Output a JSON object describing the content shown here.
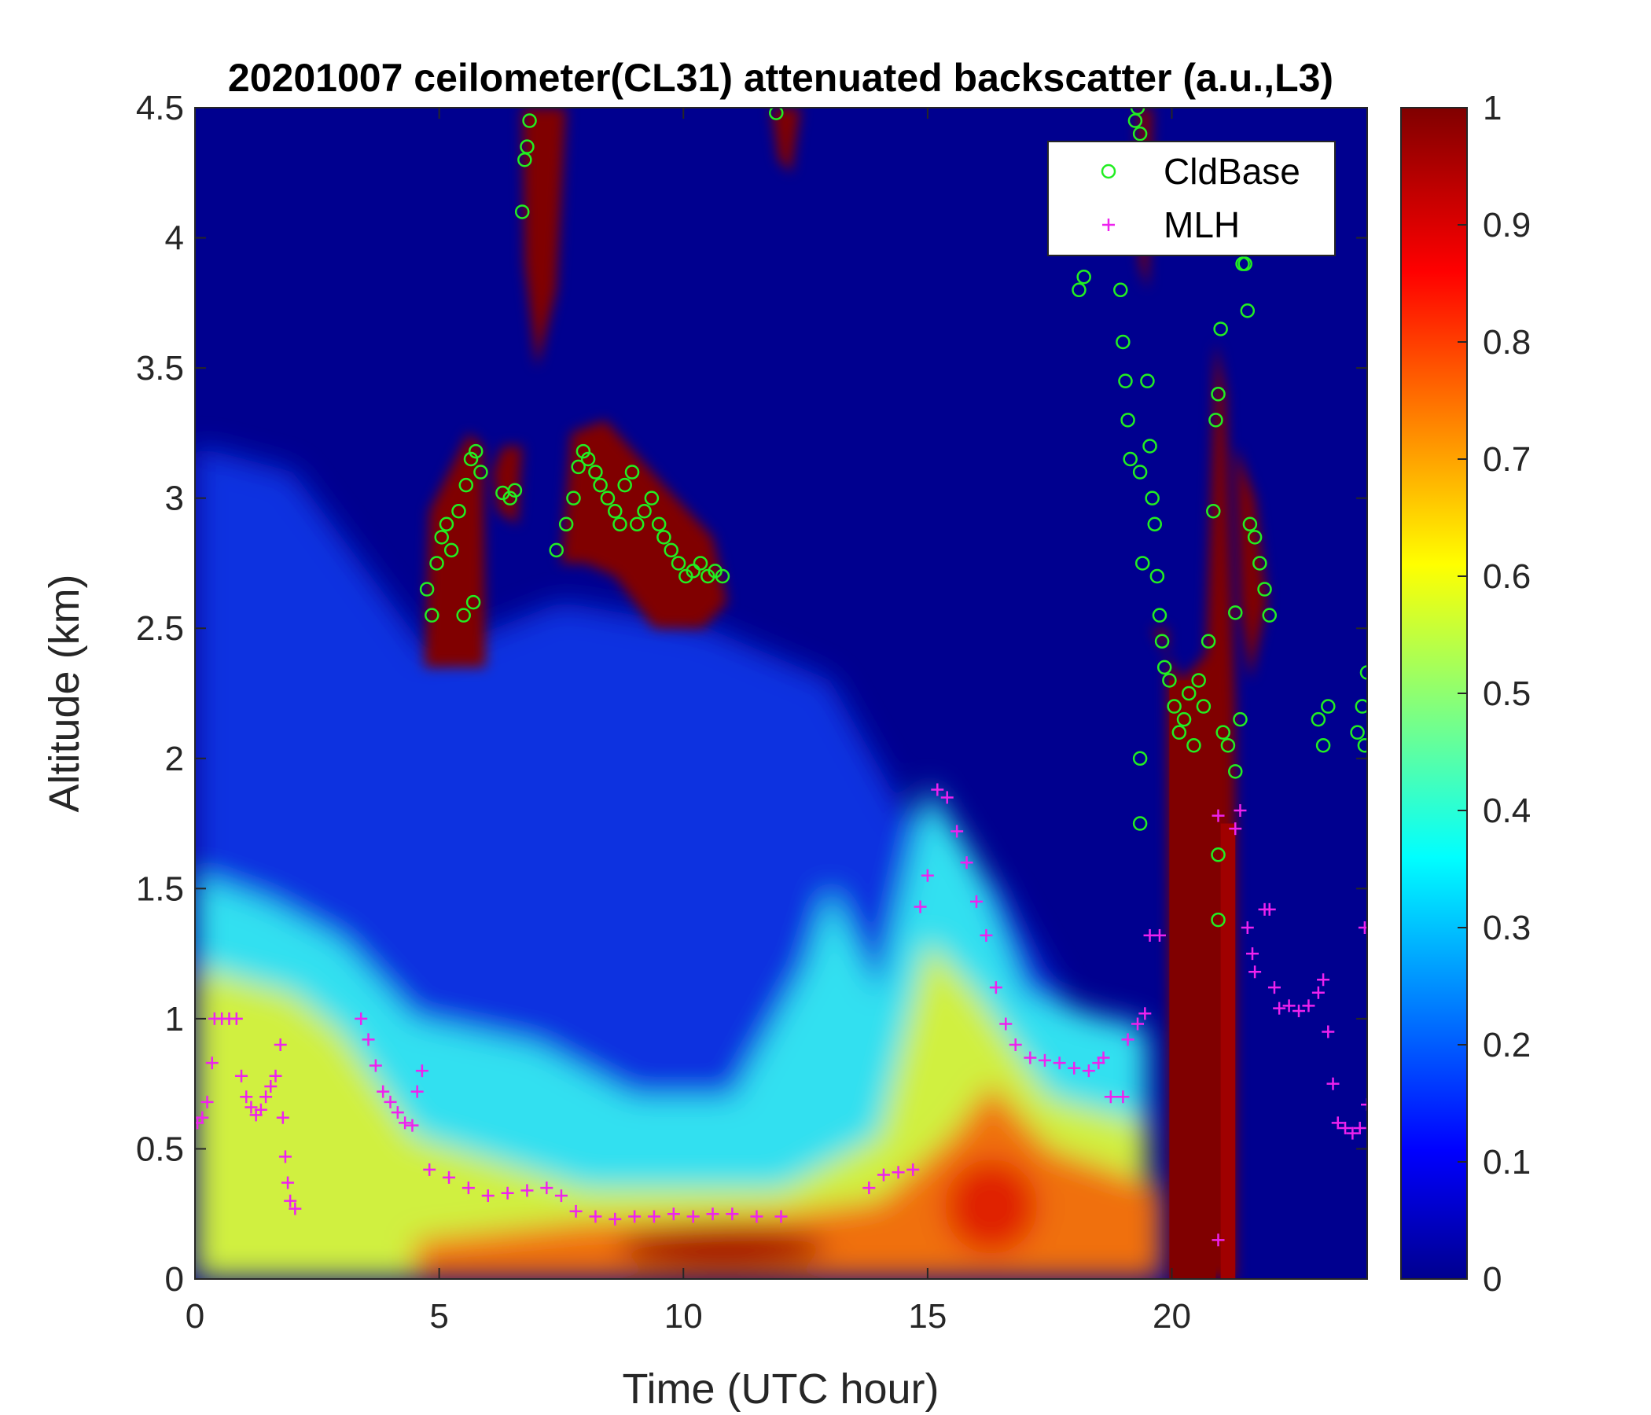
{
  "chart_data": {
    "type": "heatmap",
    "title": "20201007 ceilometer(CL31) attenuated backscatter (a.u.,L3)",
    "xlabel": "Time (UTC hour)",
    "ylabel": "Altitude (km)",
    "xlim": [
      0,
      24
    ],
    "ylim": [
      0,
      4.5
    ],
    "xticks": [
      0,
      5,
      10,
      15,
      20
    ],
    "yticks": [
      0,
      0.5,
      1,
      1.5,
      2,
      2.5,
      3,
      3.5,
      4,
      4.5
    ],
    "colorbar": {
      "colormap": "jet",
      "range": [
        0,
        1
      ],
      "ticks": [
        0,
        0.1,
        0.2,
        0.3,
        0.4,
        0.5,
        0.6,
        0.7,
        0.8,
        0.9,
        1
      ]
    },
    "legend_position": "top-right",
    "grid": false,
    "series": [
      {
        "name": "CldBase",
        "marker": "circle",
        "color": "#22ee22",
        "points": [
          [
            4.75,
            2.65
          ],
          [
            4.85,
            2.55
          ],
          [
            4.95,
            2.75
          ],
          [
            5.05,
            2.85
          ],
          [
            5.15,
            2.9
          ],
          [
            5.25,
            2.8
          ],
          [
            5.4,
            2.95
          ],
          [
            5.55,
            3.05
          ],
          [
            5.65,
            3.15
          ],
          [
            5.75,
            3.18
          ],
          [
            5.85,
            3.1
          ],
          [
            5.5,
            2.55
          ],
          [
            5.7,
            2.6
          ],
          [
            6.3,
            3.02
          ],
          [
            6.45,
            3.0
          ],
          [
            6.55,
            3.03
          ],
          [
            6.7,
            4.1
          ],
          [
            6.75,
            4.3
          ],
          [
            6.8,
            4.35
          ],
          [
            6.85,
            4.45
          ],
          [
            7.4,
            2.8
          ],
          [
            7.6,
            2.9
          ],
          [
            7.75,
            3.0
          ],
          [
            7.85,
            3.12
          ],
          [
            7.95,
            3.18
          ],
          [
            8.05,
            3.15
          ],
          [
            8.2,
            3.1
          ],
          [
            8.3,
            3.05
          ],
          [
            8.45,
            3.0
          ],
          [
            8.6,
            2.95
          ],
          [
            8.7,
            2.9
          ],
          [
            8.8,
            3.05
          ],
          [
            8.95,
            3.1
          ],
          [
            9.05,
            2.9
          ],
          [
            9.2,
            2.95
          ],
          [
            9.35,
            3.0
          ],
          [
            9.5,
            2.9
          ],
          [
            9.6,
            2.85
          ],
          [
            9.75,
            2.8
          ],
          [
            9.9,
            2.75
          ],
          [
            10.05,
            2.7
          ],
          [
            10.2,
            2.72
          ],
          [
            10.35,
            2.75
          ],
          [
            10.5,
            2.7
          ],
          [
            10.65,
            2.72
          ],
          [
            10.8,
            2.7
          ],
          [
            11.9,
            4.48
          ],
          [
            18.1,
            3.8
          ],
          [
            18.2,
            3.85
          ],
          [
            18.95,
            3.8
          ],
          [
            19.0,
            3.6
          ],
          [
            19.05,
            3.45
          ],
          [
            19.1,
            3.3
          ],
          [
            19.15,
            3.15
          ],
          [
            19.25,
            4.45
          ],
          [
            19.3,
            4.5
          ],
          [
            19.35,
            4.4
          ],
          [
            19.35,
            3.1
          ],
          [
            19.4,
            2.75
          ],
          [
            19.5,
            3.45
          ],
          [
            19.55,
            3.2
          ],
          [
            19.6,
            3.0
          ],
          [
            19.65,
            2.9
          ],
          [
            19.7,
            2.7
          ],
          [
            19.75,
            2.55
          ],
          [
            19.8,
            2.45
          ],
          [
            19.85,
            2.35
          ],
          [
            19.95,
            2.3
          ],
          [
            20.05,
            2.2
          ],
          [
            20.15,
            2.1
          ],
          [
            20.25,
            2.15
          ],
          [
            20.35,
            2.25
          ],
          [
            20.45,
            2.05
          ],
          [
            20.55,
            2.3
          ],
          [
            20.65,
            2.2
          ],
          [
            20.75,
            2.45
          ],
          [
            20.85,
            2.95
          ],
          [
            20.9,
            3.3
          ],
          [
            20.95,
            3.4
          ],
          [
            21.0,
            3.65
          ],
          [
            21.05,
            2.1
          ],
          [
            21.15,
            2.05
          ],
          [
            21.3,
            1.95
          ],
          [
            21.4,
            2.15
          ],
          [
            21.45,
            3.9
          ],
          [
            21.5,
            3.9
          ],
          [
            21.55,
            3.72
          ],
          [
            21.6,
            2.9
          ],
          [
            21.7,
            2.85
          ],
          [
            21.8,
            2.75
          ],
          [
            21.9,
            2.65
          ],
          [
            22.0,
            2.55
          ],
          [
            19.35,
            2.0
          ],
          [
            19.35,
            1.75
          ],
          [
            20.95,
            1.63
          ],
          [
            20.95,
            1.38
          ],
          [
            21.3,
            2.56
          ],
          [
            23.0,
            2.15
          ],
          [
            23.1,
            2.05
          ],
          [
            23.2,
            2.2
          ],
          [
            23.8,
            2.1
          ],
          [
            23.9,
            2.2
          ],
          [
            23.95,
            2.05
          ],
          [
            24.0,
            2.33
          ]
        ]
      },
      {
        "name": "MLH",
        "marker": "plus",
        "color": "#ee22ee",
        "points": [
          [
            0.05,
            0.6
          ],
          [
            0.15,
            0.62
          ],
          [
            0.25,
            0.68
          ],
          [
            0.35,
            0.83
          ],
          [
            0.4,
            1.0
          ],
          [
            0.55,
            1.0
          ],
          [
            0.7,
            1.0
          ],
          [
            0.85,
            1.0
          ],
          [
            0.95,
            0.78
          ],
          [
            1.05,
            0.7
          ],
          [
            1.15,
            0.66
          ],
          [
            1.25,
            0.63
          ],
          [
            1.35,
            0.65
          ],
          [
            1.45,
            0.7
          ],
          [
            1.55,
            0.74
          ],
          [
            1.65,
            0.78
          ],
          [
            1.75,
            0.9
          ],
          [
            1.8,
            0.62
          ],
          [
            1.85,
            0.47
          ],
          [
            1.9,
            0.37
          ],
          [
            1.95,
            0.3
          ],
          [
            2.05,
            0.27
          ],
          [
            3.4,
            1.0
          ],
          [
            3.55,
            0.92
          ],
          [
            3.7,
            0.82
          ],
          [
            3.85,
            0.72
          ],
          [
            4.0,
            0.68
          ],
          [
            4.15,
            0.64
          ],
          [
            4.3,
            0.6
          ],
          [
            4.45,
            0.59
          ],
          [
            4.55,
            0.72
          ],
          [
            4.65,
            0.8
          ],
          [
            4.8,
            0.42
          ],
          [
            5.2,
            0.39
          ],
          [
            5.6,
            0.35
          ],
          [
            6.0,
            0.32
          ],
          [
            6.4,
            0.33
          ],
          [
            6.8,
            0.34
          ],
          [
            7.2,
            0.35
          ],
          [
            7.5,
            0.32
          ],
          [
            7.8,
            0.26
          ],
          [
            8.2,
            0.24
          ],
          [
            8.6,
            0.23
          ],
          [
            9.0,
            0.24
          ],
          [
            9.4,
            0.24
          ],
          [
            9.8,
            0.25
          ],
          [
            10.2,
            0.24
          ],
          [
            10.6,
            0.25
          ],
          [
            11.0,
            0.25
          ],
          [
            11.5,
            0.24
          ],
          [
            12.0,
            0.24
          ],
          [
            13.8,
            0.35
          ],
          [
            14.1,
            0.4
          ],
          [
            14.4,
            0.41
          ],
          [
            14.7,
            0.42
          ],
          [
            14.85,
            1.43
          ],
          [
            15.0,
            1.55
          ],
          [
            15.2,
            1.88
          ],
          [
            15.4,
            1.85
          ],
          [
            15.6,
            1.72
          ],
          [
            15.8,
            1.6
          ],
          [
            16.0,
            1.45
          ],
          [
            16.2,
            1.32
          ],
          [
            16.4,
            1.12
          ],
          [
            16.6,
            0.98
          ],
          [
            16.8,
            0.9
          ],
          [
            17.1,
            0.85
          ],
          [
            17.4,
            0.84
          ],
          [
            17.7,
            0.83
          ],
          [
            18.0,
            0.81
          ],
          [
            18.3,
            0.8
          ],
          [
            18.5,
            0.83
          ],
          [
            18.6,
            0.85
          ],
          [
            18.75,
            0.7
          ],
          [
            19.0,
            0.7
          ],
          [
            19.1,
            0.92
          ],
          [
            19.3,
            0.98
          ],
          [
            19.45,
            1.02
          ],
          [
            19.55,
            1.32
          ],
          [
            19.75,
            1.32
          ],
          [
            20.95,
            1.78
          ],
          [
            20.95,
            0.15
          ],
          [
            21.3,
            1.73
          ],
          [
            21.4,
            1.8
          ],
          [
            21.55,
            1.35
          ],
          [
            21.65,
            1.25
          ],
          [
            21.7,
            1.18
          ],
          [
            21.9,
            1.42
          ],
          [
            22.0,
            1.42
          ],
          [
            22.1,
            1.12
          ],
          [
            22.2,
            1.04
          ],
          [
            22.4,
            1.05
          ],
          [
            22.6,
            1.03
          ],
          [
            22.8,
            1.05
          ],
          [
            23.0,
            1.1
          ],
          [
            23.1,
            1.15
          ],
          [
            23.2,
            0.95
          ],
          [
            23.3,
            0.75
          ],
          [
            23.4,
            0.6
          ],
          [
            23.55,
            0.58
          ],
          [
            23.7,
            0.56
          ],
          [
            23.85,
            0.58
          ],
          [
            23.95,
            1.35
          ],
          [
            24.0,
            0.67
          ]
        ]
      }
    ]
  }
}
